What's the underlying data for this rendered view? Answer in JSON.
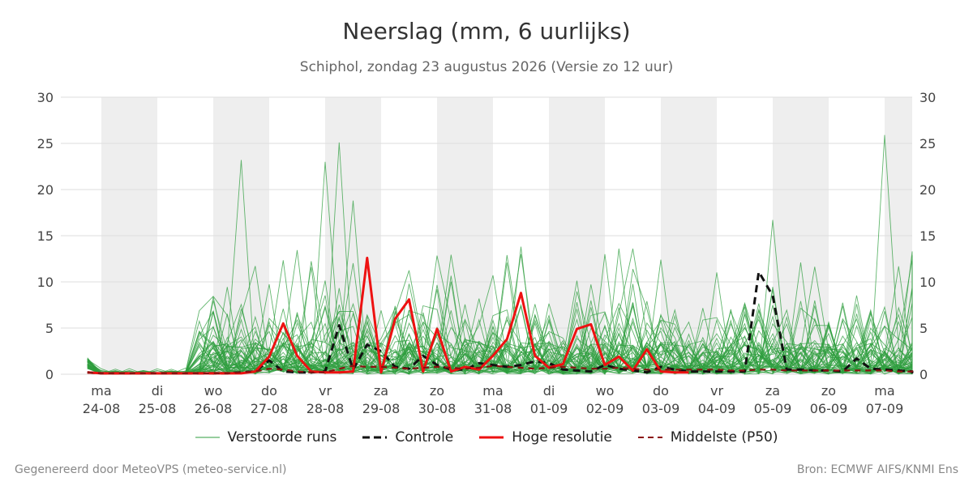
{
  "chart_data": {
    "type": "line",
    "title": "Neerslag (mm, 6 uurlijks)",
    "subtitle": "Schiphol, zondag 23 augustus 2026 (Versie zo 12 uur)",
    "ylim": [
      0,
      30
    ],
    "yticks": [
      0,
      5,
      10,
      15,
      20,
      25,
      30
    ],
    "grid": true,
    "legend_position": "bottom",
    "day_labels": [
      {
        "day": "ma",
        "date": "24-08"
      },
      {
        "day": "di",
        "date": "25-08"
      },
      {
        "day": "wo",
        "date": "26-08"
      },
      {
        "day": "do",
        "date": "27-08"
      },
      {
        "day": "vr",
        "date": "28-08"
      },
      {
        "day": "za",
        "date": "29-08"
      },
      {
        "day": "zo",
        "date": "30-08"
      },
      {
        "day": "ma",
        "date": "31-08"
      },
      {
        "day": "di",
        "date": "01-09"
      },
      {
        "day": "wo",
        "date": "02-09"
      },
      {
        "day": "do",
        "date": "03-09"
      },
      {
        "day": "vr",
        "date": "04-09"
      },
      {
        "day": "za",
        "date": "05-09"
      },
      {
        "day": "zo",
        "date": "06-09"
      },
      {
        "day": "ma",
        "date": "07-09"
      }
    ],
    "x_start_offset_days": -0.25,
    "step_hours": 6,
    "series": [
      {
        "name": "Controle",
        "color": "#111111",
        "dash": true,
        "values": [
          0.2,
          0.1,
          0.1,
          0.1,
          0.1,
          0.1,
          0.1,
          0.1,
          0.1,
          0.1,
          0.1,
          0.2,
          0.3,
          1.5,
          0.3,
          0.2,
          0.2,
          0.3,
          5.3,
          0.5,
          3.2,
          2.5,
          0.8,
          0.6,
          2.0,
          1.0,
          0.5,
          0.5,
          1.2,
          1.0,
          0.8,
          1.0,
          1.4,
          1.2,
          0.5,
          0.4,
          0.3,
          1.0,
          0.6,
          0.4,
          0.2,
          0.8,
          0.5,
          0.3,
          0.3,
          0.3,
          0.3,
          0.3,
          11.1,
          8.5,
          0.5,
          0.5,
          0.4,
          0.4,
          0.3,
          1.7,
          0.6,
          0.5,
          0.4,
          0.3,
          0.3,
          0.3,
          0.2,
          0.2,
          0.2,
          0.2,
          0.2,
          0.2,
          0.2,
          0.3,
          0.3,
          0.2
        ]
      },
      {
        "name": "Hoge resolutie",
        "color": "#ee1111",
        "dash": false,
        "values": [
          0.2,
          0.1,
          0.1,
          0.1,
          0.1,
          0.1,
          0.1,
          0.1,
          0.1,
          0.1,
          0.1,
          0.1,
          0.3,
          1.9,
          5.5,
          2.0,
          0.3,
          0.2,
          0.2,
          0.3,
          12.6,
          0.2,
          6.0,
          8.1,
          0.3,
          4.9,
          0.3,
          0.8,
          0.5,
          2.0,
          3.8,
          8.8,
          2.0,
          0.7,
          1.1,
          4.9,
          5.4,
          1.0,
          1.9,
          0.4,
          2.7,
          0.3,
          0.2,
          0.2
        ]
      },
      {
        "name": "Middelste (P50)",
        "color": "#8b1111",
        "dash": true,
        "values": [
          0.2,
          0.1,
          0.1,
          0.1,
          0.1,
          0.1,
          0.1,
          0.1,
          0.1,
          0.1,
          0.1,
          0.2,
          0.3,
          0.6,
          0.5,
          0.3,
          0.2,
          0.2,
          0.6,
          0.9,
          0.8,
          0.8,
          0.7,
          0.6,
          0.7,
          0.8,
          0.7,
          0.6,
          0.7,
          0.9,
          0.8,
          0.7,
          0.6,
          0.7,
          0.8,
          0.7,
          0.6,
          0.6,
          0.7,
          0.6,
          0.5,
          0.5,
          0.5,
          0.5,
          0.5,
          0.5,
          0.4,
          0.4,
          0.5,
          0.5,
          0.4,
          0.4,
          0.4,
          0.4,
          0.4,
          0.4,
          0.4,
          0.4,
          0.3,
          0.3,
          0.3,
          0.3,
          0.3,
          0.3,
          0.3,
          0.3,
          0.3,
          0.3,
          0.3,
          0.4,
          0.5,
          0.5
        ]
      }
    ],
    "ensemble": {
      "name": "Verstoorde runs",
      "color": "#2e9e3e",
      "members": 50,
      "highlights": [
        {
          "x_day": 4.0,
          "value": 23.0
        },
        {
          "x_day": 4.25,
          "value": 25.1
        },
        {
          "x_day": 2.5,
          "value": 23.2
        },
        {
          "x_day": 12.0,
          "value": 16.7
        },
        {
          "x_day": 14.0,
          "value": 25.9
        },
        {
          "x_day": 10.0,
          "value": 12.4
        },
        {
          "x_day": 9.0,
          "value": 13.0
        },
        {
          "x_day": 4.5,
          "value": 18.8
        },
        {
          "x_day": 7.25,
          "value": 12.9
        },
        {
          "x_day": 9.5,
          "value": 13.6
        }
      ]
    }
  },
  "legend": [
    {
      "key": "perturbed",
      "label": "Verstoorde runs",
      "color": "#2e9e3e",
      "style": "thin"
    },
    {
      "key": "control",
      "label": "Controle",
      "color": "#111111",
      "style": "dash"
    },
    {
      "key": "hires",
      "label": "Hoge resolutie",
      "color": "#ee1111",
      "style": "solid"
    },
    {
      "key": "p50",
      "label": "Middelste (P50)",
      "color": "#8b1111",
      "style": "dash"
    }
  ],
  "footer": {
    "left": "Gegenereerd door MeteoVPS (meteo-service.nl)",
    "right": "Bron: ECMWF AIFS/KNMI Ens"
  }
}
